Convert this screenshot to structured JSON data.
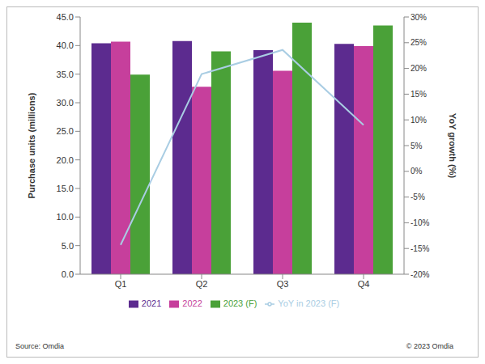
{
  "chart_data": {
    "type": "bar",
    "categories": [
      "Q1",
      "Q2",
      "Q3",
      "Q4"
    ],
    "series": [
      {
        "name": "2021",
        "color": "#5c2b8f",
        "values": [
          40.4,
          40.8,
          39.2,
          40.3
        ]
      },
      {
        "name": "2022",
        "color": "#c63f9c",
        "values": [
          40.7,
          32.8,
          35.6,
          39.9
        ]
      },
      {
        "name": "2023 (F)",
        "color": "#4aa138",
        "values": [
          34.9,
          39.0,
          44.0,
          43.5
        ]
      },
      {
        "name": "YoY in 2023 (F)",
        "color": "#a9cde3",
        "type": "line",
        "axis": "y2",
        "values": [
          -14.3,
          18.9,
          23.6,
          9.0
        ]
      }
    ],
    "y_label": "Purchase units (millions)",
    "y2_label": "YoY growth (%)",
    "ylim": [
      0,
      45
    ],
    "yticks": [
      {
        "value": 0,
        "label": "0.0"
      },
      {
        "value": 5,
        "label": "5.0"
      },
      {
        "value": 10,
        "label": "10.0"
      },
      {
        "value": 15,
        "label": "15.0"
      },
      {
        "value": 20,
        "label": "20.0"
      },
      {
        "value": 25,
        "label": "25.0"
      },
      {
        "value": 30,
        "label": "30.0"
      },
      {
        "value": 35,
        "label": "35.0"
      },
      {
        "value": 40,
        "label": "40.0"
      },
      {
        "value": 45,
        "label": "45.0"
      }
    ],
    "y2lim": [
      -20,
      30
    ],
    "y2ticks": [
      {
        "value": -20,
        "label": "-20%"
      },
      {
        "value": -15,
        "label": "-15%"
      },
      {
        "value": -10,
        "label": "-10%"
      },
      {
        "value": -5,
        "label": "-5%"
      },
      {
        "value": 0,
        "label": "0%"
      },
      {
        "value": 5,
        "label": "5%"
      },
      {
        "value": 10,
        "label": "10%"
      },
      {
        "value": 15,
        "label": "15%"
      },
      {
        "value": 20,
        "label": "20%"
      },
      {
        "value": 25,
        "label": "25%"
      },
      {
        "value": 30,
        "label": "30%"
      }
    ],
    "grid": false,
    "legend": "bottom",
    "source": "Source: Omdia",
    "copyright": "© 2023 Omdia"
  }
}
